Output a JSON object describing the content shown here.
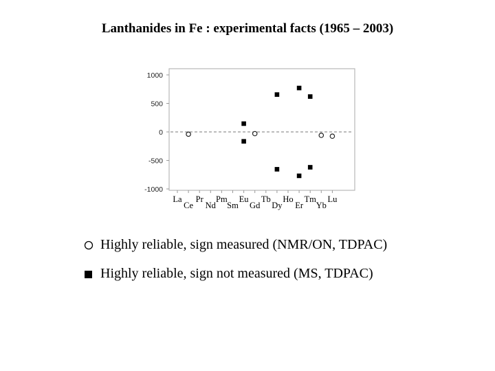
{
  "title": "Lanthanides in Fe : experimental facts (1965 – 2003)",
  "chart_data": {
    "type": "scatter",
    "categories": [
      "La",
      "Ce",
      "Pr",
      "Nd",
      "Pm",
      "Sm",
      "Eu",
      "Gd",
      "Tb",
      "Dy",
      "Ho",
      "Er",
      "Tm",
      "Yb",
      "Lu"
    ],
    "ylim": [
      -1000,
      1000
    ],
    "yticks": [
      "1000",
      "500",
      "0",
      "-500",
      "-1000"
    ],
    "zero_line": "dashed",
    "grid": false,
    "series": [
      {
        "name": "Highly reliable, sign measured (NMR/ON, TDPAC)",
        "marker": "open-circle",
        "points": [
          {
            "category": "Ce",
            "y": -40
          },
          {
            "category": "Gd",
            "y": -30
          },
          {
            "category": "Yb",
            "y": -60
          },
          {
            "category": "Lu",
            "y": -75
          }
        ]
      },
      {
        "name": "Highly reliable, sign not measured (MS, TDPAC)",
        "marker": "filled-square",
        "points": [
          {
            "category": "Eu",
            "y": 145
          },
          {
            "category": "Eu",
            "y": -165
          },
          {
            "category": "Dy",
            "y": 655
          },
          {
            "category": "Dy",
            "y": -655
          },
          {
            "category": "Er",
            "y": 770
          },
          {
            "category": "Er",
            "y": -770
          },
          {
            "category": "Tm",
            "y": 620
          },
          {
            "category": "Tm",
            "y": -620
          }
        ]
      }
    ]
  },
  "legend": [
    {
      "marker": "○",
      "label": "Highly reliable, sign measured (NMR/ON, TDPAC)"
    },
    {
      "marker": "■",
      "label": "Highly reliable, sign not measured (MS, TDPAC)"
    }
  ]
}
